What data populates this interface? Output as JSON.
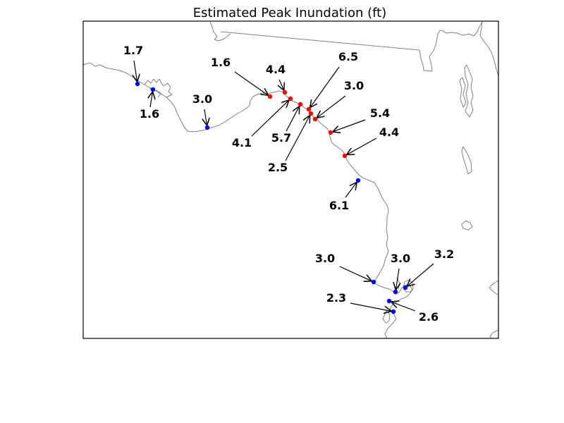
{
  "title": "Estimated Peak Inundation (ft)",
  "colors": {
    "high": "#ff0000",
    "low": "#0000ff",
    "coast": "#808080",
    "frame": "#000000"
  },
  "markers": [
    {
      "id": "m1",
      "label": "1.7",
      "group": "low"
    },
    {
      "id": "m2",
      "label": "1.6",
      "group": "low"
    },
    {
      "id": "m3",
      "label": "3.0",
      "group": "low"
    },
    {
      "id": "m4",
      "label": "1.6",
      "group": "high"
    },
    {
      "id": "m5",
      "label": "4.4",
      "group": "high"
    },
    {
      "id": "m6",
      "label": "4.1",
      "group": "high"
    },
    {
      "id": "m7",
      "label": "5.7",
      "group": "high"
    },
    {
      "id": "m8",
      "label": "6.5",
      "group": "high"
    },
    {
      "id": "m9",
      "label": "2.5",
      "group": "high"
    },
    {
      "id": "m10",
      "label": "3.0",
      "group": "high"
    },
    {
      "id": "m11",
      "label": "5.4",
      "group": "high"
    },
    {
      "id": "m12",
      "label": "4.4",
      "group": "high"
    },
    {
      "id": "m13",
      "label": "6.1",
      "group": "low"
    },
    {
      "id": "m14",
      "label": "3.0",
      "group": "low"
    },
    {
      "id": "m15",
      "label": "3.0",
      "group": "low"
    },
    {
      "id": "m16",
      "label": "3.2",
      "group": "low"
    },
    {
      "id": "m17",
      "label": "2.6",
      "group": "low"
    },
    {
      "id": "m18",
      "label": "2.3",
      "group": "low"
    }
  ]
}
